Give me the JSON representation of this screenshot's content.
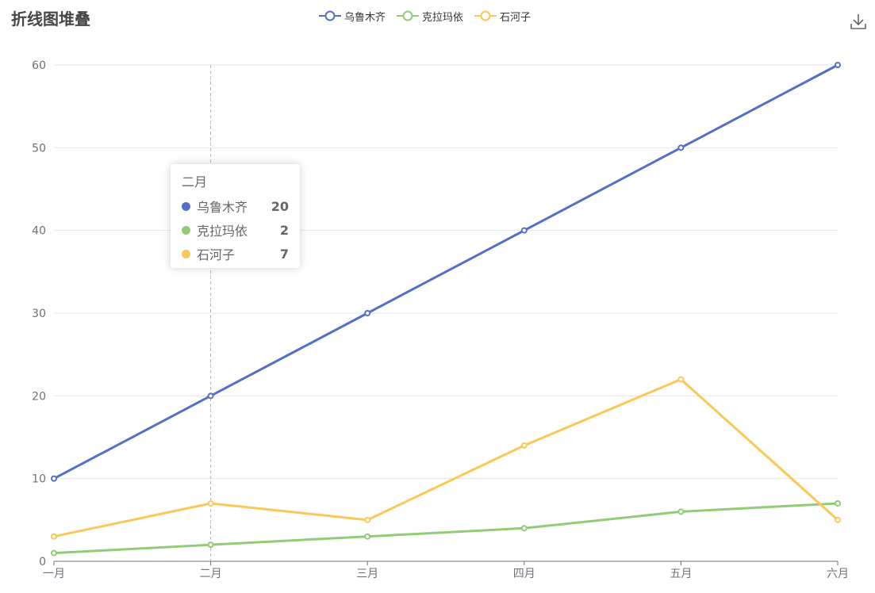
{
  "header": {
    "title": "折线图堆叠"
  },
  "toolbox": {
    "download_icon": "download-icon"
  },
  "chart_data": {
    "type": "line",
    "title": "折线图堆叠",
    "xlabel": "",
    "ylabel": "",
    "categories": [
      "一月",
      "二月",
      "三月",
      "四月",
      "五月",
      "六月"
    ],
    "ylim": [
      0,
      60
    ],
    "yticks": [
      0,
      10,
      20,
      30,
      40,
      50,
      60
    ],
    "grid": true,
    "legend_position": "top-center",
    "series": [
      {
        "name": "乌鲁木齐",
        "color": "#5470c6",
        "values": [
          10,
          20,
          30,
          40,
          50,
          60
        ]
      },
      {
        "name": "克拉玛依",
        "color": "#91cc75",
        "values": [
          1,
          2,
          3,
          4,
          6,
          7
        ]
      },
      {
        "name": "石河子",
        "color": "#fac858",
        "values": [
          3,
          7,
          5,
          14,
          22,
          5
        ]
      }
    ]
  },
  "tooltip": {
    "title": "二月",
    "rows": [
      {
        "name": "乌鲁木齐",
        "value": "20",
        "color": "#5470c6"
      },
      {
        "name": "克拉玛依",
        "value": "2",
        "color": "#91cc75"
      },
      {
        "name": "石河子",
        "value": "7",
        "color": "#fac858"
      }
    ]
  }
}
